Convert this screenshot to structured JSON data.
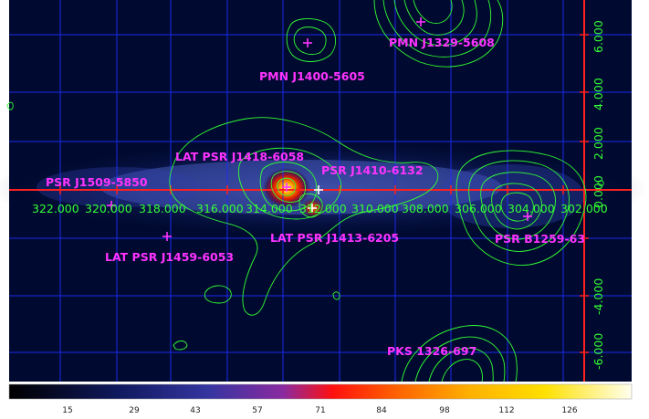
{
  "colors": {
    "background": "#000a30",
    "grid": "#1f2cff",
    "axis": "#ff2020",
    "contour": "#33ff33",
    "source_marker": "#ff33ff",
    "label": "#ff33ff",
    "tick_text": "#33ff33"
  },
  "sources": [
    {
      "name": "PMN J1329-5608"
    },
    {
      "name": "PMN J1400-5605"
    },
    {
      "name": "LAT PSR J1418-6058"
    },
    {
      "name": "PSR J1410-6132"
    },
    {
      "name": "PSR J1509-5850"
    },
    {
      "name": "LAT PSR J1413-6205"
    },
    {
      "name": "PSR B1259-63"
    },
    {
      "name": "LAT PSR J1459-6053"
    },
    {
      "name": "PKS 1326-697"
    }
  ],
  "glon_ticks": [
    "322.000",
    "320.000",
    "318.000",
    "316.000",
    "314.000",
    "312.000",
    "310.000",
    "308.000",
    "306.000",
    "304.000",
    "302.000"
  ],
  "glat_ticks": [
    "6.000",
    "4.000",
    "2.000",
    "0.000",
    "-4.000",
    "-6.000"
  ],
  "colorbar": {
    "ticks": [
      "15",
      "29",
      "43",
      "57",
      "71",
      "84",
      "98",
      "112",
      "126"
    ],
    "colormap": "heat"
  }
}
